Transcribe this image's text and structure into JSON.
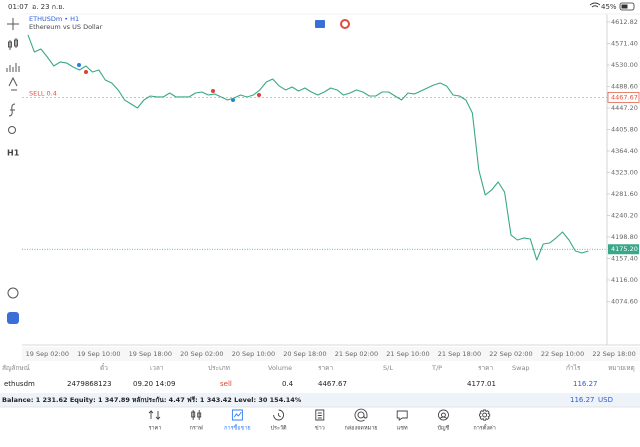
{
  "status_bar": {
    "time": "01:07",
    "date": "อ. 23 ก.ย.",
    "battery": "45%"
  },
  "toolbar": {
    "timeframe": "H1"
  },
  "chart_data": {
    "type": "line",
    "title": "ETHUSDm • H1",
    "subtitle": "Ethereum vs US Dollar",
    "color": "#3aa888",
    "categories": [
      null,
      null,
      null,
      "19 Sep 02:00",
      null,
      null,
      null,
      null,
      null,
      null,
      null,
      "19 Sep 10:00",
      null,
      null,
      null,
      null,
      null,
      null,
      null,
      "19 Sep 18:00",
      null,
      null,
      null,
      null,
      null,
      null,
      null,
      "20 Sep 02:00",
      null,
      null,
      null,
      null,
      null,
      null,
      null,
      "20 Sep 10:00",
      null,
      null,
      null,
      null,
      null,
      null,
      null,
      "20 Sep 18:00",
      null,
      null,
      null,
      null,
      null,
      null,
      null,
      "21 Sep 02:00",
      null,
      null,
      null,
      null,
      null,
      null,
      null,
      "21 Sep 10:00",
      null,
      null,
      null,
      null,
      null,
      null,
      null,
      "21 Sep 18:00",
      null,
      null,
      null,
      null,
      null,
      null,
      null,
      "22 Sep 02:00",
      null,
      null,
      null,
      null,
      null,
      null,
      null,
      "22 Sep 10:00",
      null,
      null,
      null,
      null,
      null,
      null,
      null,
      "22 Sep 18:00"
    ],
    "values": [
      4587.8,
      4555.0,
      4560.8,
      4545.4,
      4528.1,
      4535.8,
      4533.8,
      4526.1,
      4520.4,
      4528.1,
      4516.5,
      4520.4,
      4501.1,
      4495.3,
      4481.9,
      4462.6,
      4454.9,
      4447.2,
      4462.6,
      4470.3,
      4468.4,
      4468.4,
      4476.1,
      4468.4,
      4468.4,
      4468.4,
      4476.1,
      4478.0,
      4472.2,
      4474.2,
      4468.4,
      4462.6,
      4466.5,
      4472.2,
      4468.4,
      4472.2,
      4481.9,
      4497.3,
      4503.0,
      4489.6,
      4481.9,
      4487.6,
      4479.9,
      4485.7,
      4478.0,
      4472.2,
      4478.0,
      4485.7,
      4481.9,
      4472.2,
      4476.1,
      4481.9,
      4478.0,
      4470.3,
      4470.3,
      4478.0,
      4478.0,
      4470.3,
      4462.6,
      4476.1,
      4474.2,
      4479.9,
      4485.7,
      4491.5,
      4495.3,
      4489.6,
      4472.2,
      4470.3,
      4462.6,
      4437.6,
      4327.8,
      4279.7,
      4289.3,
      4304.7,
      4285.4,
      4202.6,
      4193.0,
      4196.9,
      4194.9,
      4154.5,
      4185.3,
      4187.2,
      4196.9,
      4208.4,
      4193.0,
      4171.8,
      4168.0,
      4171.8,
      null,
      null,
      null,
      null
    ],
    "ylim": [
      3990.8,
      4628.2
    ],
    "yticks": [
      4612.82,
      {
        "value": 4571.4,
        "label": "4571.40"
      },
      {
        "value": 4530,
        "label": "4530.00"
      },
      {
        "value": 4488.6,
        "label": "4488.60"
      },
      {
        "value": 4447.2,
        "label": "4447.20"
      },
      {
        "value": 4405.8,
        "label": "4405.80"
      },
      {
        "value": 4364.4,
        "label": "4364.40"
      },
      {
        "value": 4323,
        "label": "4323.00"
      },
      {
        "value": 4281.6,
        "label": "4281.60"
      },
      {
        "value": 4240.2,
        "label": "4240.20"
      },
      {
        "value": 4198.8,
        "label": "4198.80"
      },
      {
        "value": 4157.4,
        "label": "4157.40"
      },
      {
        "value": 4116,
        "label": "4116.00"
      },
      {
        "value": 4074.6,
        "label": "4074.60"
      }
    ],
    "grid": false,
    "position": {
      "label": "SELL 0.4",
      "price": 4467.67
    },
    "current_price": {
      "value": 4175.2,
      "label": "4175.20"
    }
  },
  "positions_table": {
    "headers": [
      "สัญลักษณ์",
      "ตั๋ว",
      "เวลา",
      "ประเภท",
      "Volume",
      "ราคา",
      "S/L",
      "T/P",
      "ราคา",
      "Swap",
      "กำไร",
      "หมายเหตุ"
    ],
    "row": {
      "symbol": "ethusdm",
      "ticket": "2479868123",
      "time": "09.20 14:09",
      "type": "sell",
      "volume": 0.4,
      "price": 4467.67,
      "current_price": 4177.01,
      "profit": 116.27
    }
  },
  "summary": {
    "text": "Balance: 1 231.62 Equity: 1 347.89 หลักประกัน: 4.47 ฟรี: 1 343.42 Level: 30 154.14%",
    "profit": 116.27,
    "currency": "USD"
  },
  "nav": {
    "items": [
      "ราคา",
      "กราฟ",
      "การซื้อขาย",
      "ประวัติ",
      "ข่าว",
      "กล่องจดหมาย",
      "แชท",
      "บัญชี",
      "การตั้งค่า"
    ],
    "active": 2
  }
}
